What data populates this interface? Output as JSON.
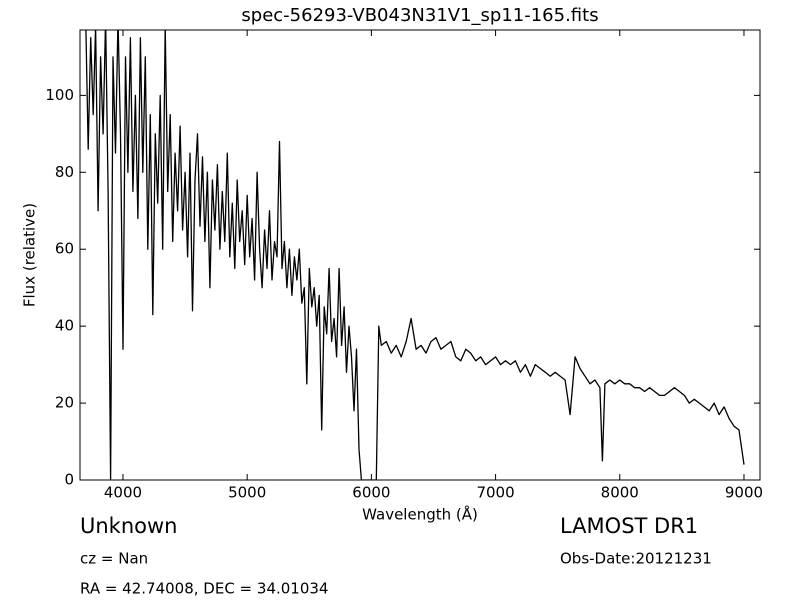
{
  "chart_data": {
    "type": "line",
    "title": "spec-56293-VB043N31V1_sp11-165.fits",
    "xlabel": "Wavelength (Å)",
    "ylabel": "Flux (relative)",
    "annotations": {
      "object": "Unknown",
      "cz": "cz = Nan",
      "coords": "RA = 42.74008, DEC = 34.01034",
      "survey": "LAMOST DR1",
      "obs_date": "Obs-Date:20121231"
    },
    "color": "#000000",
    "xlim": [
      3654,
      9129
    ],
    "ylim": [
      0,
      117
    ],
    "xticks": [
      4000,
      5000,
      6000,
      7000,
      8000,
      9000
    ],
    "yticks": [
      0,
      20,
      40,
      60,
      80,
      100
    ],
    "x": [
      3700,
      3720,
      3740,
      3760,
      3780,
      3800,
      3820,
      3840,
      3860,
      3880,
      3900,
      3920,
      3940,
      3960,
      3980,
      4000,
      4020,
      4040,
      4060,
      4080,
      4100,
      4120,
      4140,
      4160,
      4180,
      4200,
      4220,
      4240,
      4260,
      4280,
      4300,
      4320,
      4340,
      4360,
      4380,
      4400,
      4420,
      4440,
      4460,
      4480,
      4500,
      4520,
      4540,
      4560,
      4580,
      4600,
      4620,
      4640,
      4660,
      4680,
      4700,
      4720,
      4740,
      4760,
      4780,
      4800,
      4820,
      4840,
      4860,
      4880,
      4900,
      4920,
      4940,
      4960,
      4980,
      5000,
      5020,
      5040,
      5060,
      5080,
      5100,
      5120,
      5140,
      5160,
      5180,
      5200,
      5220,
      5240,
      5260,
      5280,
      5300,
      5320,
      5340,
      5360,
      5380,
      5400,
      5420,
      5440,
      5460,
      5480,
      5500,
      5520,
      5540,
      5560,
      5580,
      5600,
      5620,
      5640,
      5660,
      5680,
      5700,
      5720,
      5740,
      5760,
      5780,
      5800,
      5820,
      5840,
      5860,
      5880,
      5900,
      5920,
      5960,
      6000,
      6040,
      6060,
      6080,
      6120,
      6160,
      6200,
      6240,
      6280,
      6320,
      6360,
      6400,
      6440,
      6480,
      6520,
      6560,
      6600,
      6640,
      6680,
      6720,
      6760,
      6800,
      6840,
      6880,
      6920,
      6960,
      7000,
      7040,
      7080,
      7120,
      7160,
      7200,
      7240,
      7280,
      7320,
      7360,
      7400,
      7440,
      7480,
      7520,
      7560,
      7600,
      7640,
      7680,
      7720,
      7760,
      7800,
      7840,
      7860,
      7880,
      7920,
      7960,
      8000,
      8040,
      8080,
      8120,
      8160,
      8200,
      8240,
      8280,
      8320,
      8360,
      8400,
      8440,
      8480,
      8520,
      8560,
      8600,
      8640,
      8680,
      8720,
      8760,
      8800,
      8840,
      8880,
      8920,
      8960,
      9000
    ],
    "values": [
      120,
      86,
      115,
      95,
      118,
      70,
      110,
      90,
      120,
      75,
      0,
      110,
      85,
      120,
      90,
      34,
      110,
      80,
      115,
      75,
      100,
      68,
      115,
      80,
      110,
      60,
      95,
      43,
      90,
      72,
      100,
      60,
      118,
      75,
      95,
      62,
      85,
      70,
      92,
      65,
      80,
      58,
      85,
      44,
      78,
      90,
      66,
      84,
      62,
      80,
      50,
      78,
      65,
      82,
      60,
      75,
      62,
      85,
      58,
      72,
      55,
      78,
      62,
      70,
      56,
      74,
      58,
      68,
      52,
      80,
      60,
      50,
      65,
      55,
      70,
      52,
      62,
      58,
      88,
      55,
      62,
      50,
      60,
      48,
      58,
      52,
      60,
      46,
      50,
      25,
      55,
      45,
      50,
      40,
      48,
      13,
      45,
      38,
      55,
      36,
      42,
      32,
      55,
      35,
      45,
      28,
      40,
      32,
      18,
      34,
      8,
      0,
      0,
      0,
      0,
      40,
      35,
      36,
      33,
      35,
      32,
      36,
      42,
      34,
      35,
      33,
      36,
      37,
      34,
      35,
      36,
      32,
      31,
      34,
      33,
      31,
      32,
      30,
      31,
      32,
      30,
      31,
      30,
      31,
      28,
      30,
      27,
      30,
      29,
      28,
      27,
      28,
      27,
      26,
      17,
      32,
      29,
      27,
      25,
      26,
      24,
      5,
      25,
      26,
      25,
      26,
      25,
      25,
      24,
      24,
      23,
      24,
      23,
      22,
      22,
      23,
      24,
      23,
      22,
      20,
      21,
      20,
      19,
      18,
      20,
      17,
      19,
      16,
      14,
      13,
      4
    ]
  }
}
